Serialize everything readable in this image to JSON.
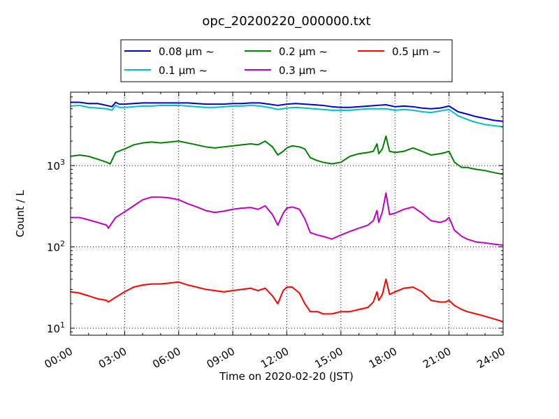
{
  "chart_data": {
    "type": "line",
    "title": "opc_20200220_000000.txt",
    "xlabel": "Time on 2020-02-20 (JST)",
    "ylabel": "Count / L",
    "x_ticks": [
      "00:00",
      "03:00",
      "06:00",
      "09:00",
      "12:00",
      "15:00",
      "18:00",
      "21:00",
      "24:00"
    ],
    "y_tick_values": [
      10,
      100,
      1000
    ],
    "y_tick_base": "10",
    "y_tick_exponents": [
      "1",
      "2",
      "3"
    ],
    "yscale": "log",
    "ylim": [
      8.2,
      8000
    ],
    "xlim_hours": [
      0,
      24
    ],
    "grid": true,
    "legend_location": "top, above plot, 3 columns",
    "series": [
      {
        "name": "0.08 μm ~",
        "color": "#0000cc",
        "x_hours": [
          0,
          0.5,
          1,
          1.5,
          2,
          2.3,
          2.5,
          2.7,
          3,
          3.5,
          4,
          4.5,
          5,
          5.5,
          6,
          6.5,
          7,
          7.5,
          8,
          8.5,
          9,
          9.5,
          10,
          10.5,
          11,
          11.5,
          12,
          12.5,
          13,
          13.5,
          14,
          14.5,
          15,
          15.5,
          16,
          16.5,
          17,
          17.5,
          18,
          18.5,
          19,
          19.5,
          20,
          20.5,
          21,
          21.5,
          22,
          22.5,
          23,
          23.5,
          24
        ],
        "values": [
          6000,
          6000,
          5800,
          5800,
          5500,
          5300,
          6000,
          5700,
          5700,
          5800,
          5900,
          5900,
          5900,
          5900,
          5900,
          5900,
          5800,
          5700,
          5700,
          5700,
          5800,
          5800,
          5900,
          5900,
          5700,
          5500,
          5700,
          5800,
          5700,
          5600,
          5500,
          5300,
          5200,
          5200,
          5300,
          5400,
          5500,
          5600,
          5300,
          5400,
          5300,
          5100,
          5000,
          5100,
          5400,
          4600,
          4300,
          4000,
          3800,
          3600,
          3500
        ]
      },
      {
        "name": "0.1 μm ~",
        "color": "#00bfbf",
        "x_hours": [
          0,
          0.5,
          1,
          1.5,
          2,
          2.3,
          2.5,
          2.7,
          3,
          3.5,
          4,
          4.5,
          5,
          5.5,
          6,
          6.5,
          7,
          7.5,
          8,
          8.5,
          9,
          9.5,
          10,
          10.5,
          11,
          11.5,
          12,
          12.5,
          13,
          13.5,
          14,
          14.5,
          15,
          15.5,
          16,
          16.5,
          17,
          17.5,
          18,
          18.5,
          19,
          19.5,
          20,
          20.5,
          21,
          21.5,
          22,
          22.5,
          23,
          23.5,
          24
        ],
        "values": [
          5400,
          5500,
          5200,
          5100,
          5000,
          4800,
          5500,
          5200,
          5200,
          5300,
          5400,
          5400,
          5500,
          5500,
          5500,
          5400,
          5300,
          5200,
          5200,
          5300,
          5400,
          5400,
          5500,
          5400,
          5200,
          4900,
          5100,
          5200,
          5100,
          5000,
          4900,
          4800,
          4800,
          4800,
          4900,
          5000,
          5000,
          5000,
          4800,
          4900,
          4800,
          4600,
          4500,
          4700,
          4900,
          4100,
          3700,
          3400,
          3200,
          3100,
          3000
        ]
      },
      {
        "name": "0.2 μm ~",
        "color": "#007f00",
        "x_hours": [
          0,
          0.5,
          1,
          1.5,
          2,
          2.2,
          2.5,
          3,
          3.5,
          4,
          4.5,
          5,
          5.5,
          6,
          6.5,
          7,
          7.5,
          8,
          8.5,
          9,
          9.5,
          10,
          10.4,
          10.8,
          11.2,
          11.5,
          11.8,
          12,
          12.3,
          12.7,
          13,
          13.3,
          13.7,
          14,
          14.5,
          15,
          15.5,
          16,
          16.5,
          16.8,
          17,
          17.1,
          17.3,
          17.5,
          17.7,
          18,
          18.5,
          19,
          19.5,
          20,
          20.5,
          20.8,
          21,
          21.3,
          21.7,
          22,
          22.5,
          23,
          23.5,
          24
        ],
        "values": [
          1300,
          1350,
          1300,
          1200,
          1100,
          1050,
          1450,
          1600,
          1800,
          1900,
          1950,
          1900,
          1950,
          2000,
          1900,
          1800,
          1700,
          1650,
          1700,
          1750,
          1800,
          1850,
          1800,
          2000,
          1700,
          1350,
          1500,
          1650,
          1750,
          1700,
          1600,
          1250,
          1150,
          1100,
          1050,
          1100,
          1300,
          1400,
          1450,
          1500,
          1850,
          1400,
          1600,
          2300,
          1500,
          1450,
          1500,
          1650,
          1500,
          1350,
          1400,
          1450,
          1500,
          1100,
          950,
          950,
          900,
          870,
          820,
          780
        ]
      },
      {
        "name": "0.3 μm ~",
        "color": "#bf00bf",
        "x_hours": [
          0,
          0.5,
          1,
          1.5,
          2,
          2.1,
          2.5,
          3,
          3.5,
          4,
          4.5,
          5,
          5.5,
          6,
          6.5,
          7,
          7.5,
          8,
          8.5,
          9,
          9.5,
          10,
          10.4,
          10.8,
          11.2,
          11.5,
          11.8,
          12,
          12.3,
          12.7,
          13,
          13.3,
          13.7,
          14,
          14.5,
          15,
          15.5,
          16,
          16.5,
          16.8,
          17,
          17.1,
          17.3,
          17.5,
          17.7,
          18,
          18.5,
          19,
          19.5,
          20,
          20.5,
          20.8,
          21,
          21.3,
          21.7,
          22,
          22.5,
          23,
          23.5,
          24
        ],
        "values": [
          230,
          230,
          215,
          200,
          185,
          170,
          230,
          270,
          320,
          380,
          410,
          410,
          400,
          380,
          340,
          310,
          280,
          265,
          275,
          290,
          300,
          305,
          290,
          320,
          250,
          185,
          260,
          300,
          310,
          290,
          220,
          150,
          140,
          135,
          125,
          140,
          155,
          170,
          185,
          210,
          280,
          200,
          270,
          460,
          250,
          260,
          290,
          310,
          260,
          210,
          200,
          210,
          230,
          160,
          135,
          125,
          115,
          112,
          108,
          105
        ]
      },
      {
        "name": "0.5 μm ~",
        "color": "#ff0000",
        "x_hours": [
          0,
          0.5,
          1,
          1.5,
          2,
          2.1,
          2.5,
          3,
          3.5,
          4,
          4.5,
          5,
          5.5,
          6,
          6.5,
          7,
          7.5,
          8,
          8.5,
          9,
          9.5,
          10,
          10.4,
          10.8,
          11.2,
          11.5,
          11.8,
          12,
          12.3,
          12.7,
          13,
          13.3,
          13.7,
          14,
          14.5,
          15,
          15.5,
          16,
          16.5,
          16.8,
          17,
          17.1,
          17.3,
          17.5,
          17.7,
          18,
          18.5,
          19,
          19.5,
          20,
          20.5,
          20.8,
          21,
          21.3,
          21.7,
          22,
          22.5,
          23,
          23.5,
          24
        ],
        "values": [
          28,
          27,
          25,
          23,
          22,
          21,
          24,
          28,
          32,
          34,
          35,
          35,
          36,
          37,
          34,
          32,
          30,
          29,
          28,
          29,
          30,
          31,
          29,
          31,
          25,
          20,
          29,
          32,
          32,
          27,
          20,
          16,
          16,
          15,
          15,
          16,
          16,
          17,
          18,
          21,
          28,
          22,
          26,
          40,
          26,
          28,
          31,
          32,
          28,
          22,
          21,
          21,
          22,
          19,
          17,
          16,
          15,
          14,
          13,
          12
        ]
      }
    ]
  }
}
